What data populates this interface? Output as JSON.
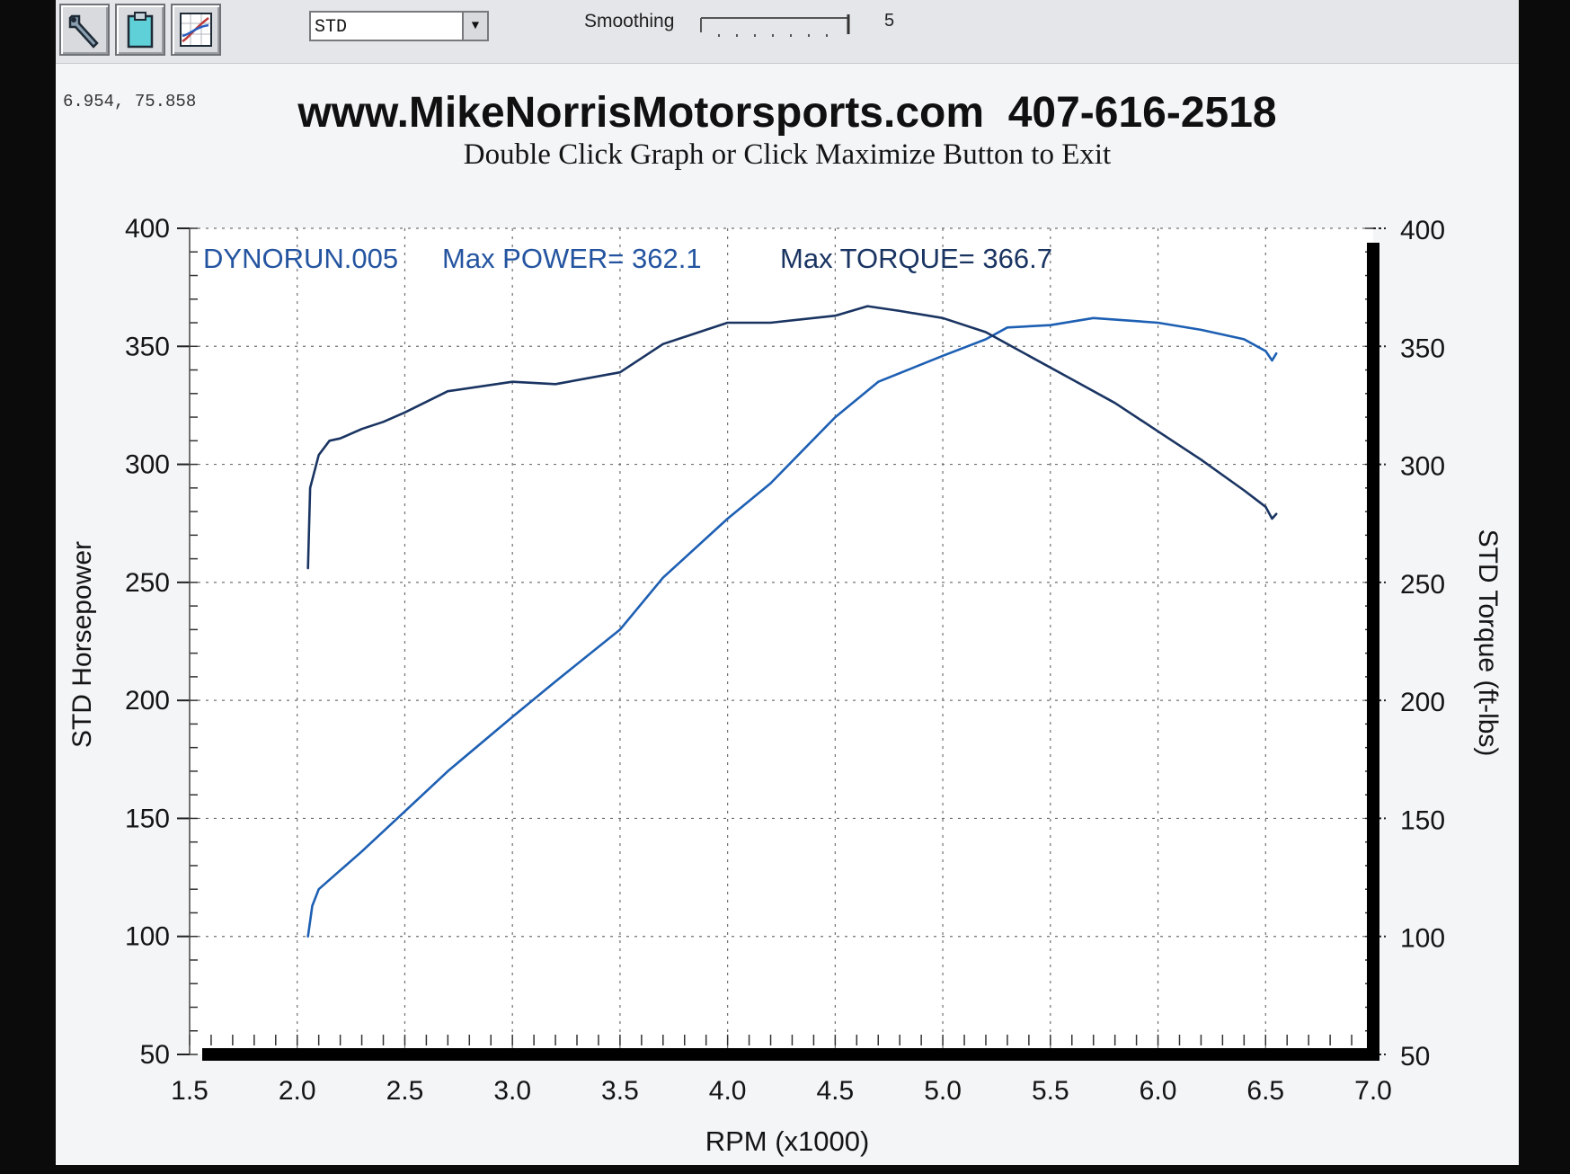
{
  "toolbar": {
    "buttons": [
      {
        "icon": "wrench-icon"
      },
      {
        "icon": "clipboard-icon"
      },
      {
        "icon": "graph-icon"
      }
    ],
    "mode_select_value": "STD",
    "smoothing_label": "Smoothing",
    "smoothing_value": "5"
  },
  "coordinate_readout": "6.954, 75.858",
  "colors": {
    "hp": "#1d5fb3",
    "torque": "#1a3462",
    "grid": "#707070",
    "axis_frame": "#000000"
  },
  "chart_data": {
    "type": "line",
    "title": "www.MikeNorrisMotorsports.com  407-616-2518",
    "subtitle": "Double Click Graph or Click Maximize Button to Exit",
    "xlabel": "RPM (x1000)",
    "ylabel_left": "STD Horsepower",
    "ylabel_right": "STD Torque (ft-lbs)",
    "xlim": [
      1.5,
      7.0
    ],
    "ylim": [
      50,
      400
    ],
    "xticks": [
      "1.5",
      "2.0",
      "2.5",
      "3.0",
      "3.5",
      "4.0",
      "4.5",
      "5.0",
      "5.5",
      "6.0",
      "6.5",
      "7.0"
    ],
    "yticks_left": [
      "50",
      "100",
      "150",
      "200",
      "250",
      "300",
      "350",
      "400"
    ],
    "yticks_right": [
      "50",
      "100",
      "150",
      "200",
      "250",
      "300",
      "350",
      "400"
    ],
    "grid": true,
    "annotation": {
      "run": "DYNORUN.005",
      "max_power": "Max POWER= 362.1",
      "max_torque": "Max TORQUE= 366.7"
    },
    "series": [
      {
        "key": "horsepower",
        "axis": "left",
        "x": [
          2.05,
          2.07,
          2.1,
          2.2,
          2.3,
          2.5,
          2.7,
          3.0,
          3.2,
          3.5,
          3.7,
          4.0,
          4.2,
          4.5,
          4.7,
          5.0,
          5.2,
          5.3,
          5.5,
          5.7,
          6.0,
          6.2,
          6.4,
          6.5,
          6.53,
          6.55
        ],
        "values": [
          100,
          113,
          120,
          128,
          136,
          153,
          170,
          193,
          208,
          230,
          252,
          277,
          292,
          320,
          335,
          346,
          353,
          358,
          359,
          362,
          360,
          357,
          353,
          348,
          344,
          347
        ]
      },
      {
        "key": "torque",
        "axis": "right",
        "x": [
          2.05,
          2.06,
          2.1,
          2.15,
          2.2,
          2.3,
          2.4,
          2.5,
          2.7,
          3.0,
          3.2,
          3.5,
          3.7,
          3.9,
          4.0,
          4.2,
          4.5,
          4.65,
          4.8,
          5.0,
          5.2,
          5.4,
          5.6,
          5.8,
          6.0,
          6.2,
          6.4,
          6.5,
          6.53,
          6.55
        ],
        "values": [
          256,
          290,
          304,
          310,
          311,
          315,
          318,
          322,
          331,
          335,
          334,
          339,
          351,
          357,
          360,
          360,
          363,
          367,
          365,
          362,
          356,
          346,
          336,
          326,
          314,
          302,
          289,
          282,
          277,
          279
        ]
      }
    ]
  }
}
